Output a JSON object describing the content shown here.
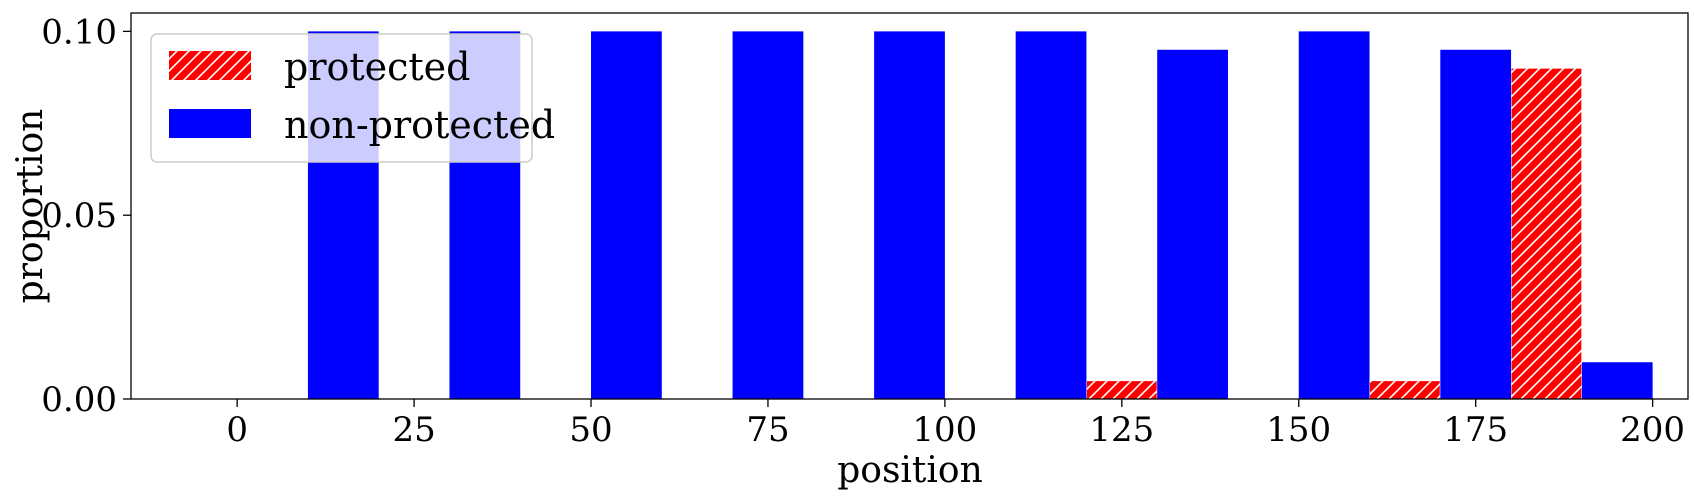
{
  "chart_data": {
    "type": "bar",
    "xlabel": "position",
    "ylabel": "proportion",
    "xlim": [
      -15,
      205
    ],
    "ylim": [
      0,
      0.105
    ],
    "xticks": [
      0,
      25,
      50,
      75,
      100,
      125,
      150,
      175,
      200
    ],
    "xtick_labels": [
      "0",
      "25",
      "50",
      "75",
      "100",
      "125",
      "150",
      "175",
      "200"
    ],
    "yticks": [
      0,
      0.05,
      0.1
    ],
    "ytick_labels": [
      "0.00",
      "0.05",
      "0.10"
    ],
    "bin_width": 10,
    "legend_position": "upper-left",
    "grid": false,
    "series": [
      {
        "name": "protected",
        "color": "#ff0000",
        "hatch": "diagonal",
        "x": [
          0,
          20,
          40,
          60,
          80,
          100,
          120,
          140,
          160,
          180
        ],
        "values": [
          0,
          0,
          0,
          0,
          0,
          0,
          0.005,
          0,
          0.005,
          0.09
        ]
      },
      {
        "name": "non-protected",
        "color": "#0000ff",
        "hatch": "none",
        "x": [
          10,
          30,
          50,
          70,
          90,
          110,
          130,
          150,
          170,
          190
        ],
        "values": [
          0.1,
          0.1,
          0.1,
          0.1,
          0.1,
          0.1,
          0.095,
          0.1,
          0.095,
          0.01
        ]
      }
    ]
  }
}
